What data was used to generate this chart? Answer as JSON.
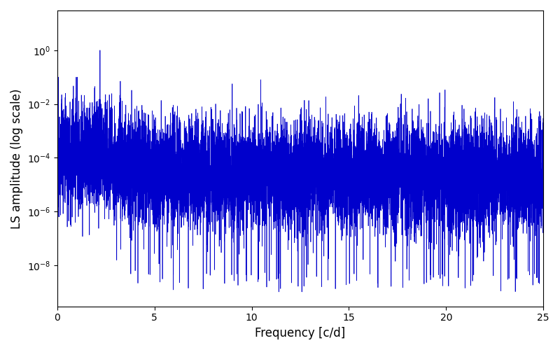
{
  "xlabel": "Frequency [c/d]",
  "ylabel": "LS amplitude (log scale)",
  "xlim": [
    0,
    25
  ],
  "ylim": [
    3e-10,
    30
  ],
  "yticks": [
    1e-08,
    1e-06,
    0.0001,
    0.01,
    1.0
  ],
  "line_color": "#0000cc",
  "line_width": 0.5,
  "figsize": [
    8.0,
    5.0
  ],
  "dpi": 100,
  "peak_freq": 2.2,
  "peak_amplitude": 1.0,
  "seed": 12345
}
